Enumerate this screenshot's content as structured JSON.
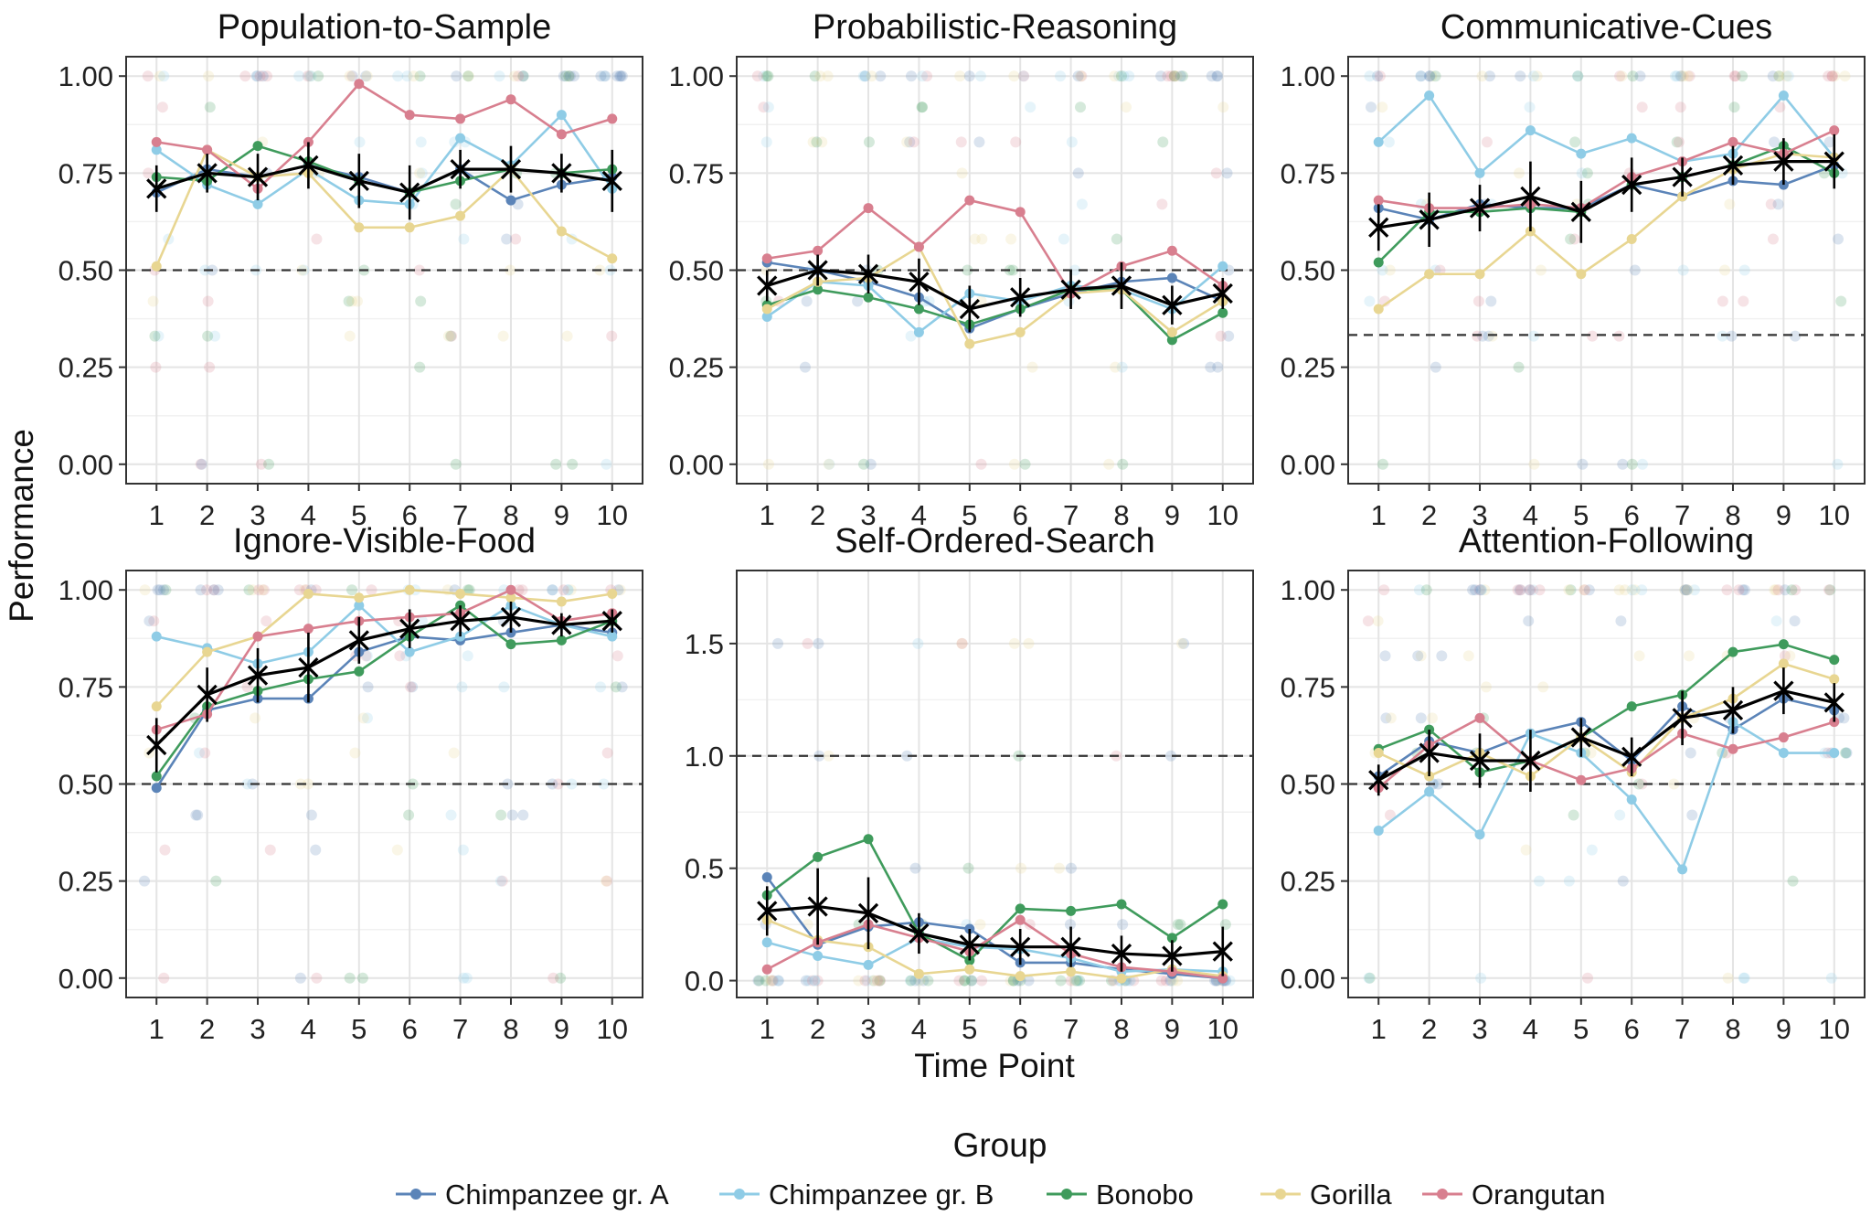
{
  "chart_data": {
    "type": "line",
    "xlabel": "Time Point",
    "ylabel": "Performance",
    "x": [
      1,
      2,
      3,
      4,
      5,
      6,
      7,
      8,
      9,
      10
    ],
    "grid": true,
    "legend": {
      "title": "Group",
      "placement": "bottom",
      "entries": [
        "Chimpanzee gr. A",
        "Chimpanzee gr. B",
        "Bonobo",
        "Gorilla",
        "Orangutan"
      ]
    },
    "colors": {
      "Chimpanzee gr. A": "#5b84b8",
      "Chimpanzee gr. B": "#8fcce6",
      "Bonobo": "#3f9b5c",
      "Gorilla": "#e8d692",
      "Orangutan": "#d87f8f",
      "mean": "#000000"
    },
    "panels": [
      {
        "title": "Population-to-Sample",
        "ylim": [
          -0.05,
          1.05
        ],
        "yticks": [
          "0.00",
          "0.25",
          "0.50",
          "0.75",
          "1.00"
        ],
        "yticks_values": [
          0,
          0.25,
          0.5,
          0.75,
          1.0
        ],
        "reference_line": 0.5,
        "series": [
          {
            "name": "Chimpanzee gr. A",
            "values": [
              0.7,
              0.76,
              0.74,
              0.77,
              0.74,
              0.7,
              0.76,
              0.68,
              0.72,
              0.74
            ]
          },
          {
            "name": "Chimpanzee gr. B",
            "values": [
              0.81,
              0.72,
              0.67,
              0.76,
              0.68,
              0.67,
              0.84,
              0.77,
              0.9,
              0.71
            ]
          },
          {
            "name": "Bonobo",
            "values": [
              0.74,
              0.73,
              0.82,
              0.78,
              0.73,
              0.7,
              0.73,
              0.76,
              0.75,
              0.76
            ]
          },
          {
            "name": "Gorilla",
            "values": [
              0.51,
              0.81,
              0.74,
              0.75,
              0.61,
              0.61,
              0.64,
              0.76,
              0.6,
              0.53
            ]
          },
          {
            "name": "Orangutan",
            "values": [
              0.83,
              0.81,
              0.71,
              0.83,
              0.98,
              0.9,
              0.89,
              0.94,
              0.85,
              0.89
            ]
          }
        ],
        "mean": [
          0.71,
          0.75,
          0.74,
          0.77,
          0.73,
          0.7,
          0.76,
          0.76,
          0.75,
          0.73
        ],
        "mean_ci": [
          0.06,
          0.05,
          0.06,
          0.06,
          0.07,
          0.07,
          0.05,
          0.06,
          0.05,
          0.08
        ]
      },
      {
        "title": "Probabilistic-Reasoning",
        "ylim": [
          -0.05,
          1.05
        ],
        "yticks": [
          "0.00",
          "0.25",
          "0.50",
          "0.75",
          "1.00"
        ],
        "yticks_values": [
          0,
          0.25,
          0.5,
          0.75,
          1.0
        ],
        "reference_line": 0.5,
        "series": [
          {
            "name": "Chimpanzee gr. A",
            "values": [
              0.52,
              0.5,
              0.47,
              0.43,
              0.35,
              0.4,
              0.44,
              0.47,
              0.48,
              0.42
            ]
          },
          {
            "name": "Chimpanzee gr. B",
            "values": [
              0.38,
              0.47,
              0.46,
              0.34,
              0.44,
              0.42,
              0.46,
              0.45,
              0.4,
              0.51
            ]
          },
          {
            "name": "Bonobo",
            "values": [
              0.41,
              0.45,
              0.43,
              0.4,
              0.36,
              0.4,
              0.45,
              0.45,
              0.32,
              0.39
            ]
          },
          {
            "name": "Gorilla",
            "values": [
              0.4,
              0.47,
              0.48,
              0.56,
              0.31,
              0.34,
              0.44,
              0.45,
              0.34,
              0.42
            ]
          },
          {
            "name": "Orangutan",
            "values": [
              0.53,
              0.55,
              0.66,
              0.56,
              0.68,
              0.65,
              0.44,
              0.51,
              0.55,
              0.46
            ]
          }
        ],
        "mean": [
          0.46,
          0.5,
          0.49,
          0.47,
          0.4,
          0.43,
          0.45,
          0.46,
          0.41,
          0.44
        ],
        "mean_ci": [
          0.04,
          0.04,
          0.05,
          0.06,
          0.06,
          0.05,
          0.05,
          0.06,
          0.05,
          0.04
        ]
      },
      {
        "title": "Communicative-Cues",
        "ylim": [
          -0.05,
          1.05
        ],
        "yticks": [
          "0.00",
          "0.25",
          "0.50",
          "0.75",
          "1.00"
        ],
        "yticks_values": [
          0,
          0.25,
          0.5,
          0.75,
          1.0
        ],
        "reference_line": 0.333,
        "series": [
          {
            "name": "Chimpanzee gr. A",
            "values": [
              0.66,
              0.63,
              0.67,
              0.66,
              0.66,
              0.72,
              0.69,
              0.73,
              0.72,
              0.77
            ]
          },
          {
            "name": "Chimpanzee gr. B",
            "values": [
              0.83,
              0.95,
              0.75,
              0.86,
              0.8,
              0.84,
              0.78,
              0.8,
              0.95,
              0.79
            ]
          },
          {
            "name": "Bonobo",
            "values": [
              0.52,
              0.65,
              0.65,
              0.66,
              0.65,
              0.72,
              0.74,
              0.77,
              0.82,
              0.75
            ]
          },
          {
            "name": "Gorilla",
            "values": [
              0.4,
              0.49,
              0.49,
              0.6,
              0.49,
              0.58,
              0.69,
              0.76,
              0.8,
              0.79
            ]
          },
          {
            "name": "Orangutan",
            "values": [
              0.68,
              0.66,
              0.66,
              0.67,
              0.66,
              0.74,
              0.78,
              0.83,
              0.8,
              0.86
            ]
          }
        ],
        "mean": [
          0.61,
          0.63,
          0.66,
          0.69,
          0.65,
          0.72,
          0.74,
          0.77,
          0.78,
          0.78
        ],
        "mean_ci": [
          0.06,
          0.07,
          0.06,
          0.09,
          0.08,
          0.07,
          0.05,
          0.05,
          0.06,
          0.07
        ]
      },
      {
        "title": "Ignore-Visible-Food",
        "ylim": [
          -0.05,
          1.05
        ],
        "yticks": [
          "0.00",
          "0.25",
          "0.50",
          "0.75",
          "1.00"
        ],
        "yticks_values": [
          0,
          0.25,
          0.5,
          0.75,
          1.0
        ],
        "reference_line": 0.5,
        "series": [
          {
            "name": "Chimpanzee gr. A",
            "values": [
              0.49,
              0.69,
              0.72,
              0.72,
              0.84,
              0.88,
              0.87,
              0.89,
              0.91,
              0.89
            ]
          },
          {
            "name": "Chimpanzee gr. B",
            "values": [
              0.88,
              0.85,
              0.81,
              0.84,
              0.96,
              0.84,
              0.88,
              0.96,
              0.91,
              0.88
            ]
          },
          {
            "name": "Bonobo",
            "values": [
              0.52,
              0.7,
              0.74,
              0.77,
              0.79,
              0.88,
              0.96,
              0.86,
              0.87,
              0.92
            ]
          },
          {
            "name": "Gorilla",
            "values": [
              0.7,
              0.84,
              0.88,
              0.99,
              0.98,
              1.0,
              0.99,
              0.98,
              0.97,
              0.99
            ]
          },
          {
            "name": "Orangutan",
            "values": [
              0.64,
              0.68,
              0.88,
              0.9,
              0.92,
              0.93,
              0.94,
              1.0,
              0.92,
              0.94
            ]
          }
        ],
        "mean": [
          0.6,
          0.73,
          0.78,
          0.8,
          0.87,
          0.9,
          0.92,
          0.93,
          0.91,
          0.92
        ],
        "mean_ci": [
          0.07,
          0.07,
          0.07,
          0.09,
          0.06,
          0.05,
          0.04,
          0.04,
          0.03,
          0.03
        ]
      },
      {
        "title": "Self-Ordered-Search",
        "ylim": [
          -0.075,
          1.825
        ],
        "yticks": [
          "0.0",
          "0.5",
          "1.0",
          "1.5"
        ],
        "yticks_values": [
          0,
          0.5,
          1.0,
          1.5
        ],
        "reference_line": 1.0,
        "series": [
          {
            "name": "Chimpanzee gr. A",
            "values": [
              0.46,
              0.16,
              0.24,
              0.26,
              0.23,
              0.08,
              0.08,
              0.05,
              0.03,
              0.01
            ]
          },
          {
            "name": "Chimpanzee gr. B",
            "values": [
              0.17,
              0.11,
              0.07,
              0.19,
              0.15,
              0.14,
              0.1,
              0.04,
              0.05,
              0.04
            ]
          },
          {
            "name": "Bonobo",
            "values": [
              0.38,
              0.55,
              0.63,
              0.21,
              0.09,
              0.32,
              0.31,
              0.34,
              0.19,
              0.34
            ]
          },
          {
            "name": "Gorilla",
            "values": [
              0.27,
              0.18,
              0.15,
              0.03,
              0.05,
              0.02,
              0.04,
              0.01,
              0.05,
              0.02
            ]
          },
          {
            "name": "Orangutan",
            "values": [
              0.05,
              0.17,
              0.25,
              0.19,
              0.13,
              0.27,
              0.12,
              0.06,
              0.04,
              0.01
            ]
          }
        ],
        "mean": [
          0.31,
          0.33,
          0.3,
          0.21,
          0.16,
          0.15,
          0.15,
          0.12,
          0.11,
          0.13
        ],
        "mean_ci": [
          0.11,
          0.17,
          0.16,
          0.09,
          0.07,
          0.08,
          0.09,
          0.08,
          0.07,
          0.11
        ]
      },
      {
        "title": "Attention-Following",
        "ylim": [
          -0.05,
          1.05
        ],
        "yticks": [
          "0.00",
          "0.25",
          "0.50",
          "0.75",
          "1.00"
        ],
        "yticks_values": [
          0,
          0.25,
          0.5,
          0.75,
          1.0
        ],
        "reference_line": 0.5,
        "series": [
          {
            "name": "Chimpanzee gr. A",
            "values": [
              0.52,
              0.61,
              0.58,
              0.63,
              0.66,
              0.56,
              0.7,
              0.64,
              0.72,
              0.69
            ]
          },
          {
            "name": "Chimpanzee gr. B",
            "values": [
              0.38,
              0.48,
              0.37,
              0.63,
              0.58,
              0.46,
              0.28,
              0.66,
              0.58,
              0.58
            ]
          },
          {
            "name": "Bonobo",
            "values": [
              0.59,
              0.64,
              0.53,
              0.56,
              0.62,
              0.7,
              0.73,
              0.84,
              0.86,
              0.82
            ]
          },
          {
            "name": "Gorilla",
            "values": [
              0.58,
              0.52,
              0.58,
              0.52,
              0.62,
              0.53,
              0.67,
              0.72,
              0.81,
              0.77
            ]
          },
          {
            "name": "Orangutan",
            "values": [
              0.49,
              0.6,
              0.67,
              0.56,
              0.51,
              0.54,
              0.63,
              0.59,
              0.62,
              0.66
            ]
          }
        ],
        "mean": [
          0.51,
          0.58,
          0.56,
          0.56,
          0.62,
          0.57,
          0.67,
          0.69,
          0.74,
          0.71
        ],
        "mean_ci": [
          0.04,
          0.06,
          0.07,
          0.08,
          0.05,
          0.05,
          0.07,
          0.06,
          0.06,
          0.05
        ]
      }
    ]
  }
}
